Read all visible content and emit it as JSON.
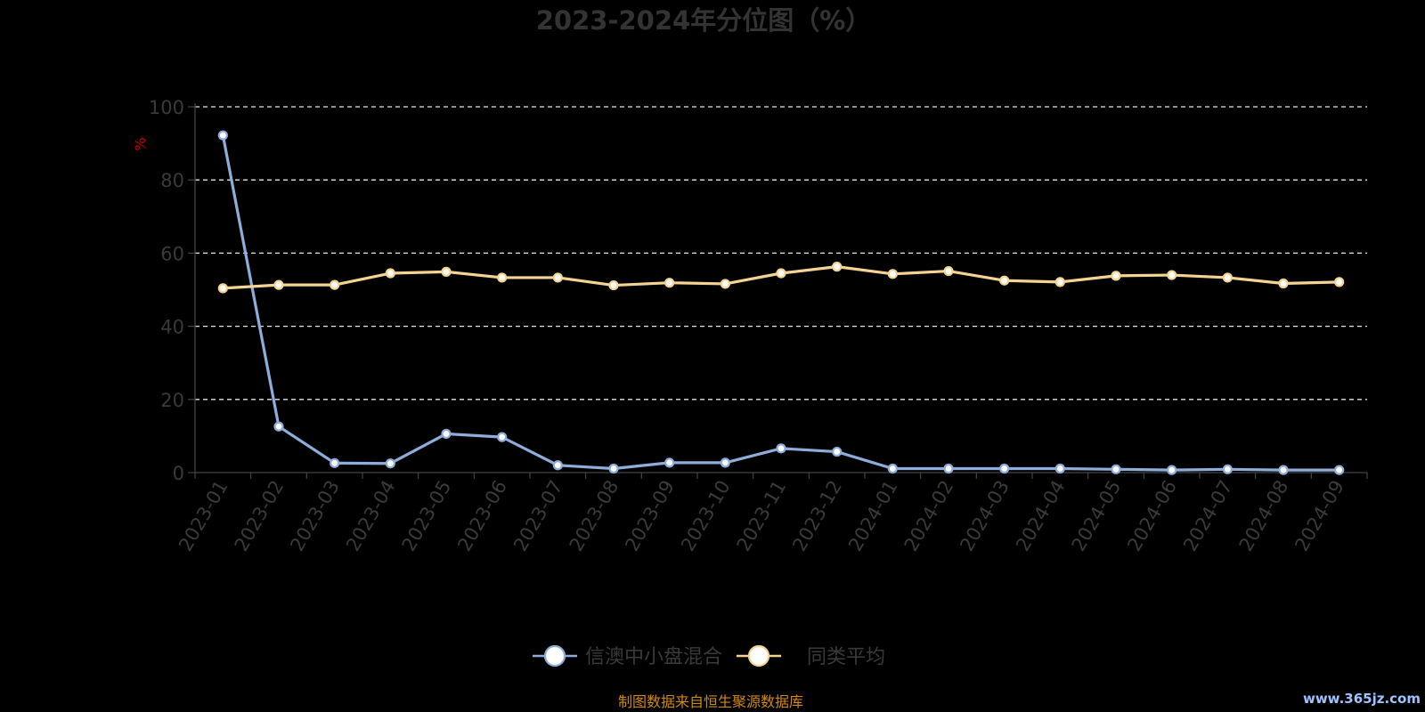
{
  "chart_data": {
    "type": "line",
    "title": "2023-2024年分位图（%）",
    "ylabel": "%",
    "xlabel": "",
    "ylim": [
      0,
      100
    ],
    "yticks": [
      0,
      20,
      40,
      60,
      80,
      100
    ],
    "grid": true,
    "legend_position": "bottom-center",
    "categories": [
      "2023-01",
      "2023-02",
      "2023-03",
      "2023-04",
      "2023-05",
      "2023-06",
      "2023-07",
      "2023-08",
      "2023-09",
      "2023-10",
      "2023-11",
      "2023-12",
      "2024-01",
      "2024-02",
      "2024-03",
      "2024-04",
      "2024-05",
      "2024-06",
      "2024-07",
      "2024-08",
      "2024-09"
    ],
    "series": [
      {
        "name": "信澳中小盘混合",
        "color": "#8eaddb",
        "values": [
          92.2,
          12.6,
          2.6,
          2.5,
          10.6,
          9.7,
          2.0,
          1.1,
          2.7,
          2.7,
          6.6,
          5.7,
          1.1,
          1.1,
          1.1,
          1.1,
          0.9,
          0.7,
          0.9,
          0.7,
          0.7
        ]
      },
      {
        "name": "同类平均",
        "color": "#f5d493",
        "values": [
          50.4,
          51.3,
          51.3,
          54.5,
          54.9,
          53.3,
          53.3,
          51.2,
          51.9,
          51.6,
          54.5,
          56.3,
          54.3,
          55.1,
          52.5,
          52.1,
          53.8,
          54.0,
          53.3,
          51.7,
          52.1
        ]
      }
    ],
    "source_note": "制图数据来自恒生聚源数据库",
    "watermark": "www.365jz.com"
  }
}
